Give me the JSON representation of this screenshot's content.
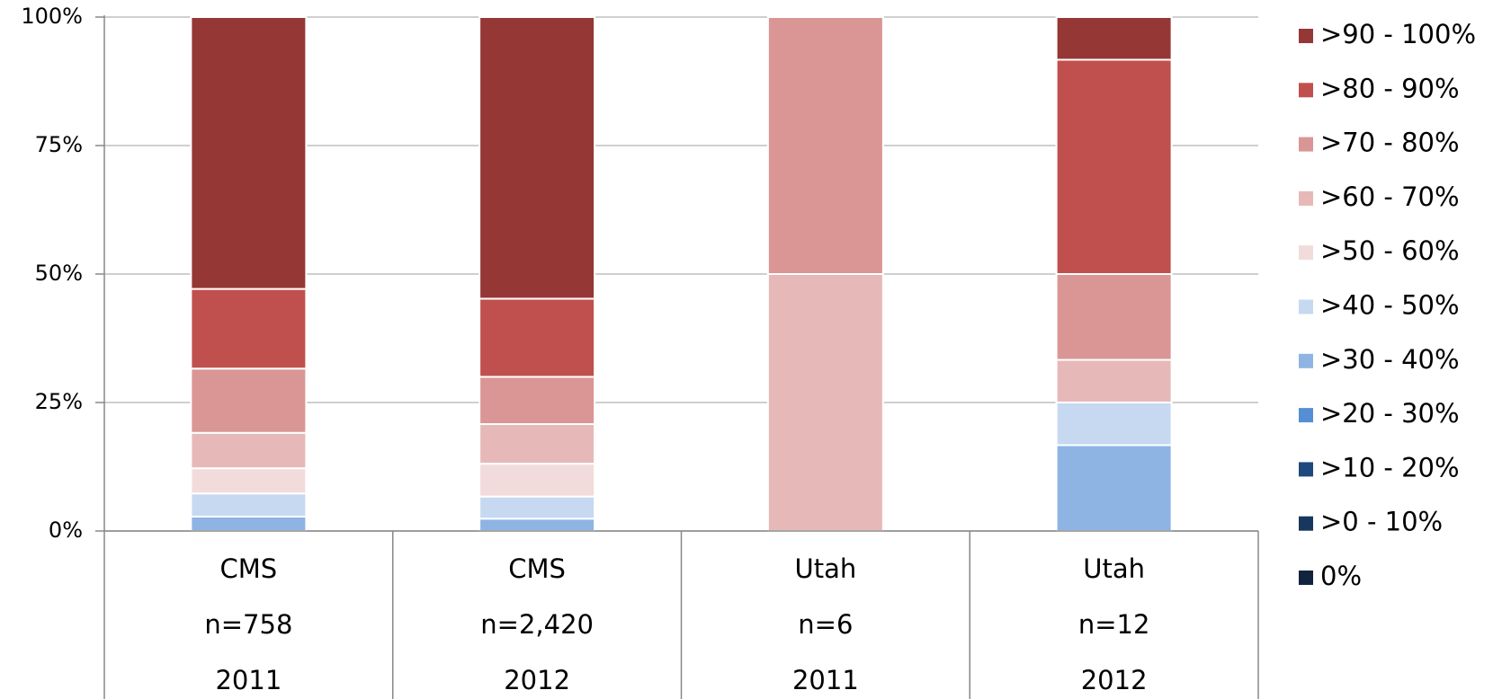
{
  "chart_data": {
    "type": "stacked_bar",
    "categories": [
      [
        "CMS",
        "n=758",
        "2011"
      ],
      [
        "CMS",
        "n=2,420",
        "2012"
      ],
      [
        "Utah",
        "n=6",
        "2011"
      ],
      [
        "Utah",
        "n=12",
        "2012"
      ]
    ],
    "ylim": [
      0,
      100
    ],
    "yticks": [
      {
        "value": 0,
        "label": "0%"
      },
      {
        "value": 25,
        "label": "25%"
      },
      {
        "value": 50,
        "label": "50%"
      },
      {
        "value": 75,
        "label": "75%"
      },
      {
        "value": 100,
        "label": "100%"
      }
    ],
    "grid": true,
    "legend": "right",
    "series": [
      {
        "name": "0%",
        "color": "#10243e",
        "values": [
          0,
          0,
          0,
          0
        ]
      },
      {
        "name": ">0 - 10%",
        "color": "#17375e",
        "values": [
          0,
          0,
          0,
          0
        ]
      },
      {
        "name": ">10 - 20%",
        "color": "#1f497d",
        "values": [
          0,
          0,
          0,
          0
        ]
      },
      {
        "name": ">20 - 30%",
        "color": "#558ed5",
        "values": [
          0,
          0,
          0,
          0
        ]
      },
      {
        "name": ">30 - 40%",
        "color": "#8eb4e3",
        "values": [
          2.8,
          2.4,
          0,
          16.7
        ]
      },
      {
        "name": ">40 - 50%",
        "color": "#c6d9f1",
        "values": [
          4.5,
          4.3,
          0,
          8.3
        ]
      },
      {
        "name": ">50 - 60%",
        "color": "#f2dcdb",
        "values": [
          4.9,
          6.4,
          0,
          0
        ]
      },
      {
        "name": ">60 - 70%",
        "color": "#e6b9b8",
        "values": [
          6.9,
          7.7,
          50,
          8.3
        ]
      },
      {
        "name": ">70 - 80%",
        "color": "#d99694",
        "values": [
          12.5,
          9.2,
          50,
          16.7
        ]
      },
      {
        "name": ">80 - 90%",
        "color": "#c0504d",
        "values": [
          15.5,
          15.2,
          0,
          41.7
        ]
      },
      {
        "name": ">90 - 100%",
        "color": "#953735",
        "values": [
          52.9,
          54.8,
          0,
          8.3
        ]
      }
    ]
  }
}
